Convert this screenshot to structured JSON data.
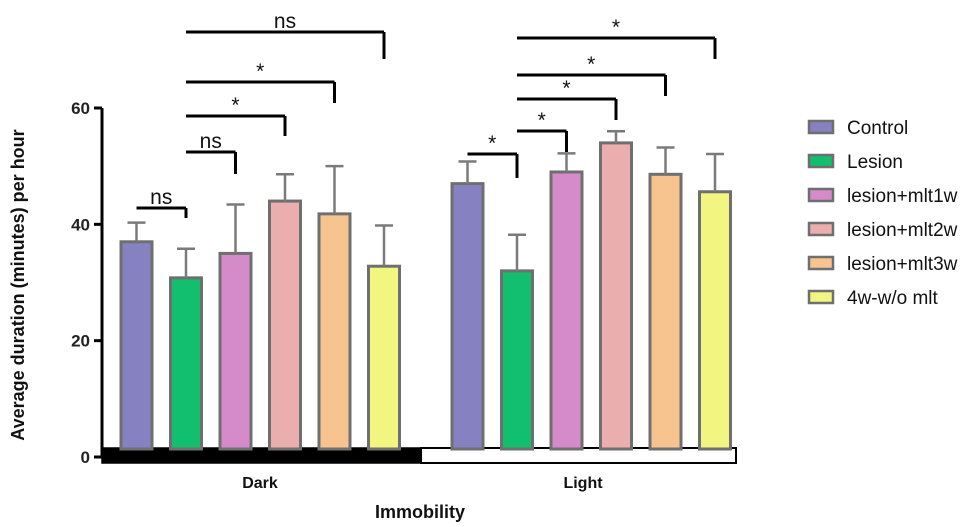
{
  "chart_data": {
    "type": "bar",
    "xlabel": "Immobility",
    "ylabel": "Average duration (minutes) per hour",
    "ylim": [
      0,
      60
    ],
    "yticks": [
      0,
      20,
      40,
      60
    ],
    "groups": [
      "Dark",
      "Light"
    ],
    "group_colors": {
      "Dark": "#000000",
      "Light": "#ffffff"
    },
    "legend_position": "right",
    "series": [
      {
        "name": "Control",
        "color": "#8682c1",
        "values": [
          37,
          47
        ],
        "errors": [
          3.3,
          3.8
        ]
      },
      {
        "name": "Lesion",
        "color": "#12bf6e",
        "values": [
          30.8,
          32
        ],
        "errors": [
          5,
          6.2
        ]
      },
      {
        "name": "lesion+mlt1w",
        "color": "#d58bc9",
        "values": [
          35,
          49
        ],
        "errors": [
          8.4,
          3.2
        ]
      },
      {
        "name": "lesion+mlt2w",
        "color": "#ebaeae",
        "values": [
          44,
          54
        ],
        "errors": [
          4.6,
          2
        ]
      },
      {
        "name": "lesion+mlt3w",
        "color": "#f7c48f",
        "values": [
          41.8,
          48.6
        ],
        "errors": [
          8.2,
          4.6
        ]
      },
      {
        "name": "4w-w/o mlt",
        "color": "#f2f57f",
        "values": [
          32.8,
          45.6
        ],
        "errors": [
          7,
          6.5
        ]
      }
    ],
    "annotations": [
      {
        "label": "ns",
        "group": 0,
        "from": 0,
        "to": 1
      },
      {
        "label": "ns",
        "group": 0,
        "from": 1,
        "to": 2
      },
      {
        "label": "*",
        "group": 0,
        "from": 1,
        "to": 3
      },
      {
        "label": "*",
        "group": 0,
        "from": 1,
        "to": 4
      },
      {
        "label": "ns",
        "group": 0,
        "from": 1,
        "to": 5
      },
      {
        "label": "*",
        "group": 1,
        "from": 0,
        "to": 1
      },
      {
        "label": "*",
        "group": 1,
        "from": 1,
        "to": 2
      },
      {
        "label": "*",
        "group": 1,
        "from": 1,
        "to": 3
      },
      {
        "label": "*",
        "group": 1,
        "from": 1,
        "to": 4
      },
      {
        "label": "*",
        "group": 1,
        "from": 1,
        "to": 5
      }
    ]
  }
}
